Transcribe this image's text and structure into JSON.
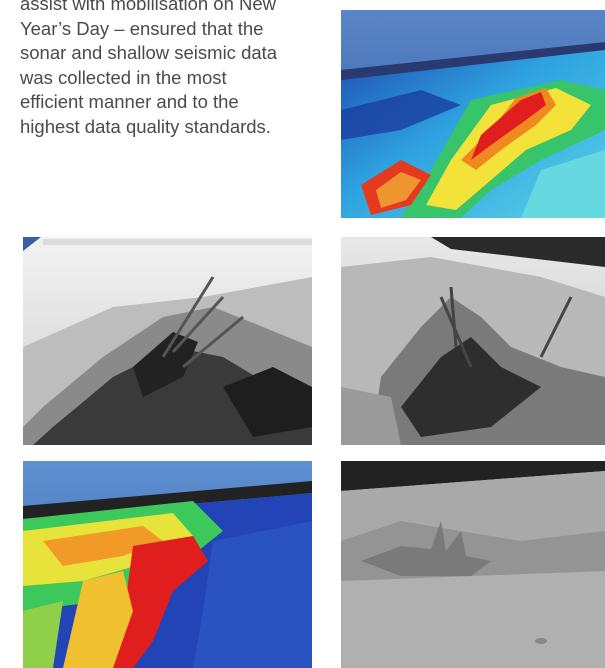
{
  "body_text": {
    "lines": [
      "assist with mobilisation on New",
      "Year’s Day – ensured that the",
      "sonar and shallow seismic data",
      "was collected in the most",
      "efficient manner and to the",
      "highest data quality standards."
    ]
  },
  "figures": [
    {
      "id": "img1",
      "depicts": "color-bathymetry-render"
    },
    {
      "id": "img2",
      "depicts": "grayscale-wreck-sonar-render"
    },
    {
      "id": "img3",
      "depicts": "grayscale-wreck-sonar-render"
    },
    {
      "id": "img4",
      "depicts": "color-bathymetry-render"
    },
    {
      "id": "img5",
      "depicts": "grayscale-seabed-render"
    }
  ],
  "colors": {
    "text": "#4a4a4a",
    "sky": "#3f6fb5",
    "deep": "#1b3ea8",
    "shallow": "#e02020"
  }
}
